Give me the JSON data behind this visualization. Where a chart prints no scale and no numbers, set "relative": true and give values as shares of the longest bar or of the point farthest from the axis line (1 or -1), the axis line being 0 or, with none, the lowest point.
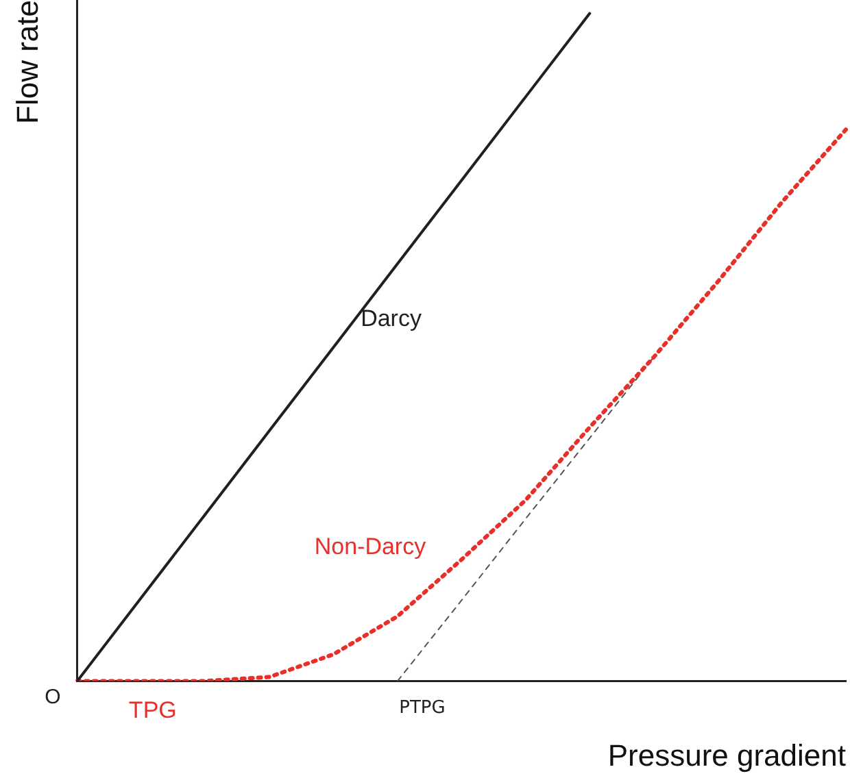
{
  "chart_data": {
    "type": "line",
    "relative": true,
    "xlabel": "Pressure gradient",
    "ylabel": "Flow rate",
    "categories": [
      null,
      null,
      null,
      null,
      null,
      null,
      null,
      null,
      null,
      null,
      null,
      null,
      null
    ],
    "series": [
      {
        "name": "Darcy",
        "color": "#231f20",
        "line_style": "solid",
        "values": [
          0,
          0.125,
          0.25,
          0.375,
          0.5,
          0.625,
          0.75,
          0.875,
          1,
          null,
          null,
          null,
          null
        ]
      },
      {
        "name": "Non-Darcy",
        "color": "#e8302b",
        "line_style": "dotted",
        "values": [
          0,
          0,
          0,
          0.006,
          0.04,
          0.097,
          0.182,
          0.271,
          0.38,
          0.485,
          0.598,
          0.717,
          0.826
        ]
      },
      {
        "color": "#555555",
        "line_style": "dashed",
        "values": [
          null,
          null,
          null,
          null,
          null,
          0,
          0.121,
          0.243,
          0.364,
          0.485,
          null,
          null,
          null
        ]
      }
    ],
    "annotations": [
      "O",
      "TPG",
      "PTPG"
    ],
    "grid": false,
    "legend": false,
    "marker": "none"
  }
}
